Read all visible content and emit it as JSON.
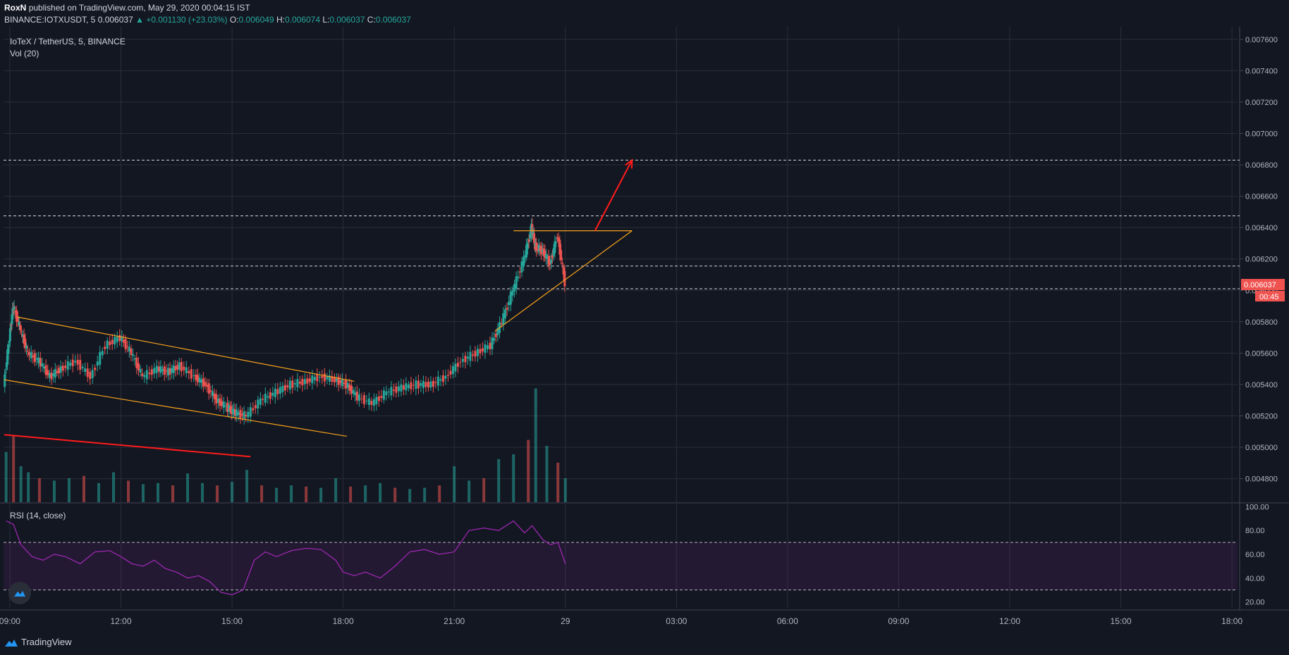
{
  "header": {
    "author": "RoxN",
    "published": "published on TradingView.com, May 29, 2020 00:04:15 IST",
    "symbol": "BINANCE:IOTXUSDT, 5",
    "last": "0.006037",
    "change": "▲ +0.001130 (+23.03%)",
    "o_label": "O:",
    "o": "0.006049",
    "h_label": "H:",
    "h": "0.006074",
    "l_label": "L:",
    "l": "0.006037",
    "c_label": "C:",
    "c": "0.006037"
  },
  "pane_legend": {
    "title": "IoTeX / TetherUS, 5, BINANCE",
    "volume": "Vol (20)",
    "rsi": "RSI (14, close)"
  },
  "price_badge": {
    "value": "0.006037",
    "countdown": "00:45",
    "color": "#ef5350"
  },
  "footer": {
    "brand": "TradingView"
  },
  "colors": {
    "up": "#26a69a",
    "down": "#ef5350",
    "trendline": "#f7a21b",
    "arrow": "#ff1b1b",
    "rsi": "#9c27b0"
  },
  "chart_data": {
    "type": "candlestick",
    "symbol": "IOTXUSDT",
    "interval": "5",
    "y_ticks": [
      "0.007600",
      "0.007400",
      "0.007200",
      "0.007000",
      "0.006800",
      "0.006600",
      "0.006400",
      "0.006200",
      "0.006000",
      "0.005800",
      "0.005600",
      "0.005400",
      "0.005200",
      "0.005000",
      "0.004800"
    ],
    "ylim": [
      0.00465,
      0.00768
    ],
    "x_ticks": [
      "09:00",
      "12:00",
      "15:00",
      "18:00",
      "21:00",
      "29",
      "03:00",
      "06:00",
      "09:00",
      "12:00",
      "15:00",
      "18:00"
    ],
    "x_tick_hours": [
      9,
      12,
      15,
      18,
      21,
      24,
      27,
      30,
      33,
      36,
      39,
      42
    ],
    "xlim_hours": [
      8.83,
      42.15
    ],
    "horizontal_levels": [
      0.00683,
      0.006475,
      0.006155,
      0.00601
    ],
    "price_path": [
      [
        8.85,
        0.0054
      ],
      [
        9.0,
        0.0057
      ],
      [
        9.1,
        0.0059
      ],
      [
        9.3,
        0.00575
      ],
      [
        9.5,
        0.0056
      ],
      [
        9.8,
        0.00555
      ],
      [
        10.1,
        0.00545
      ],
      [
        10.4,
        0.0055
      ],
      [
        10.8,
        0.00555
      ],
      [
        11.2,
        0.00545
      ],
      [
        11.6,
        0.00565
      ],
      [
        12.0,
        0.0057
      ],
      [
        12.3,
        0.0056
      ],
      [
        12.6,
        0.00545
      ],
      [
        13.0,
        0.0055
      ],
      [
        13.3,
        0.00548
      ],
      [
        13.6,
        0.00552
      ],
      [
        14.0,
        0.00545
      ],
      [
        14.3,
        0.0054
      ],
      [
        14.6,
        0.0053
      ],
      [
        14.9,
        0.00525
      ],
      [
        15.1,
        0.00522
      ],
      [
        15.4,
        0.0052
      ],
      [
        15.8,
        0.0053
      ],
      [
        16.2,
        0.00535
      ],
      [
        16.6,
        0.0054
      ],
      [
        17.0,
        0.00542
      ],
      [
        17.4,
        0.00545
      ],
      [
        17.8,
        0.00543
      ],
      [
        18.1,
        0.0054
      ],
      [
        18.4,
        0.00532
      ],
      [
        18.8,
        0.00528
      ],
      [
        19.2,
        0.00535
      ],
      [
        19.6,
        0.00538
      ],
      [
        20.0,
        0.0054
      ],
      [
        20.4,
        0.0054
      ],
      [
        20.8,
        0.00545
      ],
      [
        21.2,
        0.00555
      ],
      [
        21.6,
        0.0056
      ],
      [
        22.0,
        0.00565
      ],
      [
        22.3,
        0.0058
      ],
      [
        22.6,
        0.006
      ],
      [
        22.9,
        0.0062
      ],
      [
        23.1,
        0.0064
      ],
      [
        23.2,
        0.00628
      ],
      [
        23.4,
        0.00625
      ],
      [
        23.6,
        0.00617
      ],
      [
        23.8,
        0.00635
      ],
      [
        24.0,
        0.00605
      ]
    ],
    "volume": [
      [
        8.9,
        0.42
      ],
      [
        9.1,
        0.55
      ],
      [
        9.3,
        0.3
      ],
      [
        9.5,
        0.25
      ],
      [
        9.8,
        0.2
      ],
      [
        10.2,
        0.18
      ],
      [
        10.6,
        0.2
      ],
      [
        11.0,
        0.22
      ],
      [
        11.4,
        0.16
      ],
      [
        11.8,
        0.25
      ],
      [
        12.2,
        0.18
      ],
      [
        12.6,
        0.15
      ],
      [
        13.0,
        0.16
      ],
      [
        13.4,
        0.14
      ],
      [
        13.8,
        0.24
      ],
      [
        14.2,
        0.16
      ],
      [
        14.6,
        0.14
      ],
      [
        15.0,
        0.17
      ],
      [
        15.4,
        0.27
      ],
      [
        15.8,
        0.14
      ],
      [
        16.2,
        0.12
      ],
      [
        16.6,
        0.14
      ],
      [
        17.0,
        0.13
      ],
      [
        17.4,
        0.12
      ],
      [
        17.8,
        0.2
      ],
      [
        18.2,
        0.13
      ],
      [
        18.6,
        0.14
      ],
      [
        19.0,
        0.16
      ],
      [
        19.4,
        0.12
      ],
      [
        19.8,
        0.11
      ],
      [
        20.2,
        0.12
      ],
      [
        20.6,
        0.14
      ],
      [
        21.0,
        0.3
      ],
      [
        21.4,
        0.18
      ],
      [
        21.8,
        0.2
      ],
      [
        22.2,
        0.36
      ],
      [
        22.6,
        0.4
      ],
      [
        23.0,
        0.52
      ],
      [
        23.2,
        0.95
      ],
      [
        23.5,
        0.47
      ],
      [
        23.8,
        0.33
      ],
      [
        24.0,
        0.2
      ]
    ],
    "rsi": {
      "ylim": [
        15,
        102
      ],
      "y_ticks": [
        "100.00",
        "80.00",
        "60.00",
        "40.00",
        "20.00"
      ],
      "bands": [
        70,
        30
      ],
      "series": [
        [
          8.9,
          88
        ],
        [
          9.1,
          85
        ],
        [
          9.3,
          68
        ],
        [
          9.6,
          58
        ],
        [
          9.9,
          55
        ],
        [
          10.2,
          60
        ],
        [
          10.5,
          58
        ],
        [
          10.9,
          52
        ],
        [
          11.3,
          62
        ],
        [
          11.7,
          63
        ],
        [
          12.0,
          58
        ],
        [
          12.3,
          52
        ],
        [
          12.6,
          50
        ],
        [
          12.9,
          55
        ],
        [
          13.2,
          48
        ],
        [
          13.5,
          45
        ],
        [
          13.8,
          40
        ],
        [
          14.1,
          42
        ],
        [
          14.4,
          37
        ],
        [
          14.7,
          28
        ],
        [
          15.0,
          26
        ],
        [
          15.3,
          30
        ],
        [
          15.6,
          55
        ],
        [
          15.9,
          62
        ],
        [
          16.2,
          58
        ],
        [
          16.6,
          63
        ],
        [
          17.0,
          65
        ],
        [
          17.4,
          64
        ],
        [
          17.8,
          55
        ],
        [
          18.0,
          45
        ],
        [
          18.3,
          42
        ],
        [
          18.6,
          45
        ],
        [
          19.0,
          40
        ],
        [
          19.4,
          50
        ],
        [
          19.8,
          62
        ],
        [
          20.2,
          64
        ],
        [
          20.6,
          60
        ],
        [
          21.0,
          62
        ],
        [
          21.4,
          80
        ],
        [
          21.8,
          82
        ],
        [
          22.2,
          80
        ],
        [
          22.6,
          88
        ],
        [
          22.9,
          78
        ],
        [
          23.1,
          84
        ],
        [
          23.4,
          72
        ],
        [
          23.6,
          68
        ],
        [
          23.8,
          70
        ],
        [
          24.0,
          52
        ]
      ]
    },
    "trendlines": [
      {
        "label": "channel-upper",
        "from": [
          9.2,
          0.00583
        ],
        "to": [
          18.3,
          0.00542
        ]
      },
      {
        "label": "channel-lower",
        "from": [
          8.85,
          0.00543
        ],
        "to": [
          18.1,
          0.00507
        ]
      },
      {
        "label": "red-line",
        "from": [
          8.85,
          0.00508
        ],
        "to": [
          15.5,
          0.00494
        ]
      },
      {
        "label": "triangle-top",
        "from": [
          22.6,
          0.00638
        ],
        "to": [
          25.8,
          0.00638
        ]
      },
      {
        "label": "triangle-bottom",
        "from": [
          22.1,
          0.00574
        ],
        "to": [
          25.8,
          0.00638
        ]
      }
    ],
    "arrow": {
      "from": [
        24.8,
        0.00638
      ],
      "to": [
        25.8,
        0.00683
      ]
    }
  }
}
